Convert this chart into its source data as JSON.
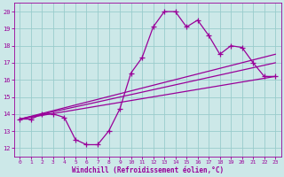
{
  "xlabel": "Windchill (Refroidissement éolien,°C)",
  "bg_color": "#cce8e8",
  "grid_color": "#99cccc",
  "line_color": "#990099",
  "xlim": [
    -0.5,
    23.5
  ],
  "ylim": [
    11.5,
    20.5
  ],
  "xticks": [
    0,
    1,
    2,
    3,
    4,
    5,
    6,
    7,
    8,
    9,
    10,
    11,
    12,
    13,
    14,
    15,
    16,
    17,
    18,
    19,
    20,
    21,
    22,
    23
  ],
  "yticks": [
    12,
    13,
    14,
    15,
    16,
    17,
    18,
    19,
    20
  ],
  "curve_x": [
    0,
    1,
    2,
    3,
    4,
    5,
    6,
    7,
    8,
    9,
    10,
    11,
    12,
    13,
    14,
    15,
    16,
    17,
    18,
    19,
    20,
    21,
    22,
    23
  ],
  "curve_y": [
    13.7,
    13.7,
    14.0,
    14.0,
    13.8,
    12.5,
    12.2,
    12.2,
    13.0,
    14.3,
    16.4,
    17.3,
    19.1,
    20.0,
    20.0,
    19.1,
    19.5,
    18.6,
    17.5,
    18.0,
    17.9,
    17.0,
    16.2,
    16.2
  ],
  "line1_x": [
    0,
    23
  ],
  "line1_y": [
    13.7,
    16.2
  ],
  "line2_x": [
    0,
    23
  ],
  "line2_y": [
    13.7,
    17.0
  ],
  "line3_x": [
    0,
    23
  ],
  "line3_y": [
    13.7,
    17.5
  ]
}
